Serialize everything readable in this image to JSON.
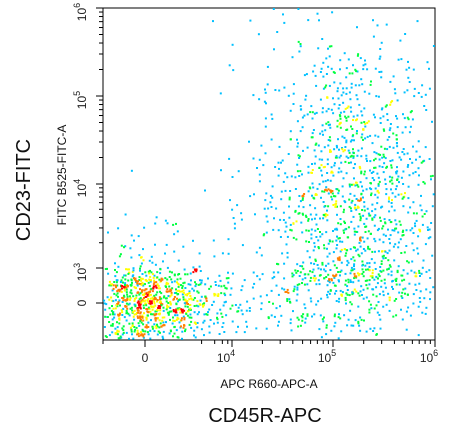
{
  "chart_data": {
    "type": "scatter",
    "title": "",
    "xlabel": "APC R660-APC-A",
    "ylabel": "FITC B525-FITC-A",
    "outer_xlabel": "CD45R-APC",
    "outer_ylabel": "CD23-FITC",
    "x_scale": "biexponential",
    "y_scale": "biexponential",
    "xlim": [
      -1000,
      1000000
    ],
    "ylim": [
      -1000,
      1000000
    ],
    "x_ticks": [
      {
        "value": 0,
        "base": "0",
        "exp": ""
      },
      {
        "value": 10000,
        "base": "10",
        "exp": "4"
      },
      {
        "value": 100000,
        "base": "10",
        "exp": "5"
      },
      {
        "value": 1000000,
        "base": "10",
        "exp": "6"
      }
    ],
    "y_ticks": [
      {
        "value": 0,
        "base": "0",
        "exp": ""
      },
      {
        "value": 1000,
        "base": "10",
        "exp": "3"
      },
      {
        "value": 10000,
        "base": "10",
        "exp": "4"
      },
      {
        "value": 100000,
        "base": "10",
        "exp": "5"
      },
      {
        "value": 1000000,
        "base": "10",
        "exp": "6"
      }
    ],
    "grid": false,
    "legend": "none",
    "color_map": "density",
    "colors": [
      "#0000ff",
      "#00c0ff",
      "#00ff40",
      "#ffff00",
      "#ff8000",
      "#ff0000"
    ],
    "populations": [
      {
        "name": "",
        "x_center": 0,
        "y_center": 0,
        "x_spread_log": 0.35,
        "y_spread_log": 0.3,
        "relative_count": 0.35
      },
      {
        "name": "",
        "x_center": 150000,
        "y_center": 6000,
        "x_spread_log": 0.22,
        "y_spread_log": 0.45,
        "relative_count": 0.55
      },
      {
        "name": "",
        "x_center": 30000,
        "y_center": 0,
        "x_spread_log": 0.6,
        "y_spread_log": 0.25,
        "relative_count": 0.1
      }
    ]
  }
}
